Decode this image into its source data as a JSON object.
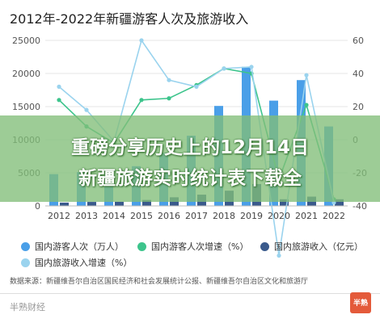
{
  "chart_data": {
    "type": "bar",
    "title": "2012年-2022年新疆游客人次及旅游收入",
    "categories": [
      "2012",
      "2013",
      "2014",
      "2015",
      "2016",
      "2017",
      "2018",
      "2019",
      "2020",
      "2021",
      "2022"
    ],
    "left_axis": {
      "ylim": [
        0,
        25000
      ],
      "ticks": [
        "0",
        "5000",
        "10000",
        "15000",
        "20000",
        "25000"
      ]
    },
    "right_axis": {
      "ylim": [
        -40,
        60
      ],
      "ticks": [
        "-40",
        "-20",
        "0",
        "20",
        "40",
        "60"
      ]
    },
    "grid": true,
    "legend_position": "bottom",
    "series": [
      {
        "name": "国内游客人次（万人）",
        "kind": "bar",
        "axis": "left",
        "color": "#4a9fe8",
        "values": [
          4800,
          5100,
          4800,
          6000,
          8000,
          10600,
          15100,
          21000,
          15900,
          19000,
          12000
        ]
      },
      {
        "name": "国内游客人次增速（%）",
        "kind": "line",
        "axis": "right",
        "color": "#3dc48c",
        "values": [
          24,
          8,
          -2,
          24,
          25,
          33,
          43,
          40,
          -24,
          21,
          -36
        ]
      },
      {
        "name": "国内旅游收入（亿元）",
        "kind": "bar",
        "axis": "left",
        "color": "#3a5a8c",
        "values": [
          500,
          600,
          620,
          900,
          1300,
          1700,
          2300,
          3300,
          1000,
          1400,
          1000
        ]
      },
      {
        "name": "国内旅游收入增速（%）",
        "kind": "line",
        "axis": "right",
        "color": "#9ad3ee",
        "values": [
          32,
          18,
          -1,
          60,
          36,
          32,
          43,
          44,
          -70,
          39,
          -38
        ]
      }
    ]
  },
  "banner": {
    "line1": "重磅分享历史上的12月14日",
    "line2": "新疆旅游实时统计表下载全"
  },
  "source": "数据来源：新疆维吾尔自治区国民经济和社会发展统计公报、新疆维吾尔自治区文化和旅游厅",
  "brand": "半熟财经",
  "brand_logo_text": "半熟"
}
